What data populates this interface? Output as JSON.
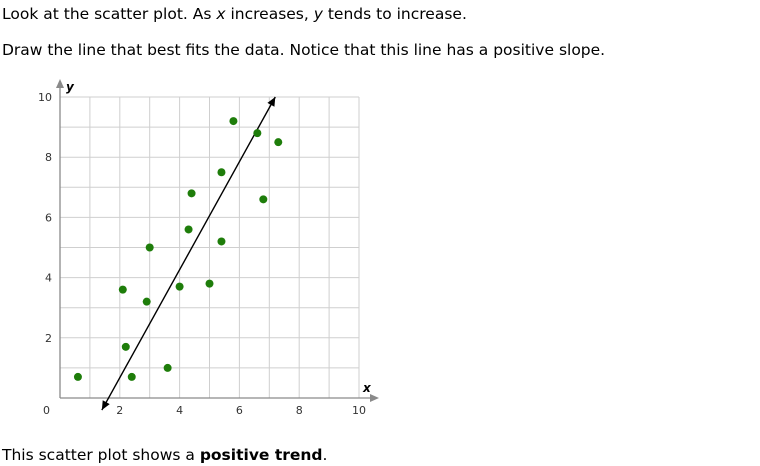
{
  "text": {
    "line1_a": "Look at the scatter plot. As ",
    "line1_x": "x",
    "line1_b": " increases, ",
    "line1_y": "y",
    "line1_c": " tends to increase.",
    "line2": "Draw the line that best fits the data. Notice that this line has a positive slope.",
    "line3_a": "This scatter plot shows a ",
    "line3_b": "positive trend",
    "line3_c": "."
  },
  "chart_data": {
    "type": "scatter",
    "xlabel": "x",
    "ylabel": "y",
    "xlim": [
      0,
      10
    ],
    "ylim": [
      0,
      10
    ],
    "origin_label": "0",
    "x_ticks": [
      2,
      4,
      6,
      8,
      10
    ],
    "y_ticks": [
      2,
      4,
      6,
      8,
      10
    ],
    "grid": true,
    "point_color": "#1e7d0a",
    "points": [
      {
        "x": 0.6,
        "y": 0.7
      },
      {
        "x": 2.1,
        "y": 3.6
      },
      {
        "x": 2.2,
        "y": 1.7
      },
      {
        "x": 2.4,
        "y": 0.7
      },
      {
        "x": 2.9,
        "y": 3.2
      },
      {
        "x": 3.0,
        "y": 5.0
      },
      {
        "x": 3.6,
        "y": 1.0
      },
      {
        "x": 4.0,
        "y": 3.7
      },
      {
        "x": 4.3,
        "y": 5.6
      },
      {
        "x": 4.4,
        "y": 6.8
      },
      {
        "x": 5.0,
        "y": 3.8
      },
      {
        "x": 5.4,
        "y": 7.5
      },
      {
        "x": 5.4,
        "y": 5.2
      },
      {
        "x": 5.8,
        "y": 9.2
      },
      {
        "x": 6.6,
        "y": 8.8
      },
      {
        "x": 6.8,
        "y": 6.6
      },
      {
        "x": 7.3,
        "y": 8.5
      }
    ],
    "fit_line": {
      "x1": 1.4,
      "y1": -0.4,
      "x2": 7.2,
      "y2": 10.0
    }
  }
}
